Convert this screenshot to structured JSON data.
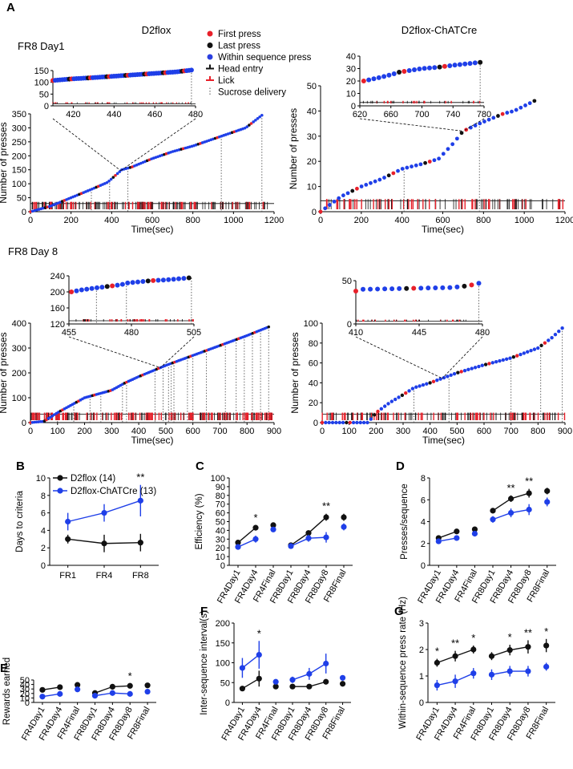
{
  "figure": {
    "panel_labels": [
      "A",
      "B",
      "C",
      "D",
      "E",
      "F",
      "G"
    ],
    "panel_a": {
      "group_left": "D2flox",
      "group_right": "D2flox-ChATCre",
      "session_day1": "FR8 Day1",
      "session_day8": "FR8 Day 8",
      "legend": [
        {
          "label": "First press",
          "color": "#e8202a",
          "symbol": "dot"
        },
        {
          "label": "Last press",
          "color": "#111111",
          "symbol": "dot"
        },
        {
          "label": "Within sequence press",
          "color": "#2a3fe0",
          "symbol": "dot"
        },
        {
          "label": "Head entry",
          "color": "#111111",
          "symbol": "tick"
        },
        {
          "label": "Lick",
          "color": "#e8202a",
          "symbol": "tick"
        },
        {
          "label": "Sucrose delivery",
          "color": "#555555",
          "symbol": "dots"
        }
      ]
    },
    "colors": {
      "d2flox": "#111111",
      "chatcre": "#1f3fe8",
      "first_press": "#e8202a",
      "grid": "#555555"
    }
  },
  "chart_data": [
    {
      "id": "A1",
      "type": "scatter",
      "title": "FR8 Day1 D2flox",
      "xlabel": "Time(sec)",
      "ylabel": "Number of presses",
      "xlim": [
        0,
        1200
      ],
      "ylim": [
        0,
        350
      ],
      "xticks": [
        0,
        200,
        400,
        600,
        800,
        1000,
        1200
      ],
      "yticks": [
        0,
        50,
        100,
        150,
        200,
        250,
        300,
        350
      ],
      "press_curve": [
        [
          0,
          0
        ],
        [
          100,
          20
        ],
        [
          200,
          50
        ],
        [
          300,
          80
        ],
        [
          380,
          105
        ],
        [
          450,
          150
        ],
        [
          500,
          160
        ],
        [
          600,
          190
        ],
        [
          700,
          215
        ],
        [
          800,
          235
        ],
        [
          900,
          260
        ],
        [
          1000,
          285
        ],
        [
          1060,
          300
        ],
        [
          1140,
          345
        ]
      ],
      "sucrose_deliveries": [
        300,
        390,
        480,
        940,
        1140
      ],
      "inset": {
        "xlim": [
          410,
          480
        ],
        "ylim": [
          0,
          150
        ],
        "xticks": [
          420,
          440,
          460,
          480
        ],
        "yticks": [
          0,
          50,
          100,
          150
        ],
        "press_curve": [
          [
            410,
            108
          ],
          [
            420,
            115
          ],
          [
            430,
            120
          ],
          [
            440,
            126
          ],
          [
            450,
            132
          ],
          [
            460,
            138
          ],
          [
            470,
            144
          ],
          [
            478,
            152
          ]
        ],
        "sucrose_deliveries": [
          478
        ]
      }
    },
    {
      "id": "A2",
      "type": "scatter",
      "title": "FR8 Day1 D2flox-ChATCre",
      "xlabel": "Time(sec)",
      "ylabel": "Number of presses",
      "xlim": [
        0,
        1200
      ],
      "ylim": [
        0,
        50
      ],
      "xticks": [
        0,
        200,
        400,
        600,
        800,
        1000,
        1200
      ],
      "yticks": [
        0,
        10,
        20,
        30,
        40,
        50
      ],
      "press_curve": [
        [
          0,
          0
        ],
        [
          100,
          6
        ],
        [
          200,
          10
        ],
        [
          300,
          13
        ],
        [
          400,
          17
        ],
        [
          500,
          19
        ],
        [
          580,
          21
        ],
        [
          650,
          27
        ],
        [
          700,
          32
        ],
        [
          780,
          35
        ],
        [
          900,
          39
        ],
        [
          950,
          40
        ],
        [
          1050,
          44
        ]
      ],
      "sucrose_deliveries": [
        410,
        780
      ],
      "inset": {
        "xlim": [
          620,
          780
        ],
        "ylim": [
          0,
          40
        ],
        "xticks": [
          620,
          660,
          700,
          740,
          780
        ],
        "yticks": [
          0,
          10,
          20,
          30,
          40
        ],
        "press_curve": [
          [
            625,
            20
          ],
          [
            640,
            22
          ],
          [
            660,
            25
          ],
          [
            670,
            27
          ],
          [
            700,
            30
          ],
          [
            720,
            31
          ],
          [
            745,
            33
          ],
          [
            775,
            35
          ]
        ],
        "sucrose_deliveries": [
          775
        ]
      }
    },
    {
      "id": "A3",
      "type": "scatter",
      "title": "FR8 Day 8 D2flox",
      "xlabel": "Time(sec)",
      "ylabel": "Number of presses",
      "xlim": [
        0,
        900
      ],
      "ylim": [
        0,
        400
      ],
      "xticks": [
        0,
        100,
        200,
        300,
        400,
        500,
        600,
        700,
        800,
        900
      ],
      "yticks": [
        0,
        100,
        200,
        300,
        400
      ],
      "press_curve": [
        [
          0,
          0
        ],
        [
          50,
          5
        ],
        [
          100,
          40
        ],
        [
          150,
          70
        ],
        [
          200,
          100
        ],
        [
          300,
          130
        ],
        [
          350,
          160
        ],
        [
          400,
          185
        ],
        [
          500,
          230
        ],
        [
          600,
          270
        ],
        [
          700,
          310
        ],
        [
          800,
          350
        ],
        [
          880,
          385
        ]
      ],
      "sucrose_deliveries": [
        100,
        160,
        220,
        260,
        340,
        355,
        460,
        490,
        510,
        520,
        530,
        580,
        600,
        650,
        720,
        760,
        790,
        820,
        850,
        880
      ],
      "inset": {
        "xlim": [
          455,
          505
        ],
        "ylim": [
          120,
          240
        ],
        "xticks": [
          455,
          480,
          505
        ],
        "yticks": [
          120,
          160,
          200,
          240
        ],
        "press_curve": [
          [
            456,
            200
          ],
          [
            460,
            205
          ],
          [
            466,
            210
          ],
          [
            476,
            218
          ],
          [
            478,
            222
          ],
          [
            488,
            228
          ],
          [
            494,
            230
          ],
          [
            503,
            235
          ]
        ],
        "sucrose_deliveries": [
          466,
          478,
          504
        ]
      }
    },
    {
      "id": "A4",
      "type": "scatter",
      "title": "FR8 Day 8 D2flox-ChATCre",
      "xlabel": "Time(sec)",
      "ylabel": "Number of presses",
      "xlim": [
        0,
        900
      ],
      "ylim": [
        0,
        100
      ],
      "xticks": [
        0,
        100,
        200,
        300,
        400,
        500,
        600,
        700,
        800,
        900
      ],
      "yticks": [
        0,
        20,
        40,
        60,
        80,
        100
      ],
      "press_curve": [
        [
          0,
          0
        ],
        [
          170,
          0
        ],
        [
          200,
          10
        ],
        [
          250,
          20
        ],
        [
          300,
          28
        ],
        [
          340,
          35
        ],
        [
          400,
          40
        ],
        [
          470,
          47
        ],
        [
          500,
          50
        ],
        [
          600,
          58
        ],
        [
          700,
          65
        ],
        [
          800,
          75
        ],
        [
          850,
          85
        ],
        [
          890,
          95
        ]
      ],
      "sucrose_deliveries": [
        340,
        470,
        700,
        810,
        890
      ],
      "inset": {
        "xlim": [
          410,
          480
        ],
        "ylim": [
          0,
          50
        ],
        "xticks": [
          410,
          445,
          480
        ],
        "yticks": [
          0,
          50
        ],
        "press_curve": [
          [
            410,
            38
          ],
          [
            414,
            40
          ],
          [
            462,
            42
          ],
          [
            468,
            43
          ],
          [
            474,
            45
          ],
          [
            478,
            47
          ]
        ],
        "sucrose_deliveries": [
          478
        ]
      }
    },
    {
      "id": "B",
      "type": "line",
      "ylabel": "Days to criteria",
      "categories": [
        "FR1",
        "FR4",
        "FR8"
      ],
      "ylim": [
        0,
        10
      ],
      "yticks": [
        0,
        2,
        4,
        6,
        8,
        10
      ],
      "series": [
        {
          "name": "D2flox (14)",
          "values": [
            3.0,
            2.5,
            2.6
          ],
          "err": [
            0.5,
            1.0,
            1.0
          ]
        },
        {
          "name": "D2flox-ChATCre (13)",
          "values": [
            5.0,
            6.0,
            7.4
          ],
          "err": [
            1.0,
            1.0,
            1.8
          ]
        }
      ],
      "significance": [
        {
          "category": "FR8",
          "label": "**"
        }
      ]
    },
    {
      "id": "C",
      "type": "line",
      "ylabel": "Efficiency (%)",
      "categories": [
        "FR4Day1",
        "FR4Day4",
        "FR4Final",
        "FR8Day1",
        "FR8Day4",
        "FR8Day8",
        "FR8Final"
      ],
      "ylim": [
        0,
        100
      ],
      "yticks": [
        0,
        10,
        20,
        30,
        40,
        50,
        60,
        70,
        80,
        90,
        100
      ],
      "segments": [
        [
          0,
          1
        ],
        [
          3,
          4,
          5
        ]
      ],
      "series": [
        {
          "name": "D2flox",
          "values": [
            26,
            43,
            46,
            23,
            37,
            55,
            55
          ],
          "err": [
            2,
            3,
            3,
            2,
            3,
            4,
            4
          ]
        },
        {
          "name": "D2flox-ChATCre",
          "values": [
            21,
            30,
            41,
            22,
            31,
            32,
            44
          ],
          "err": [
            2,
            4,
            3,
            2,
            4,
            6,
            4
          ]
        }
      ],
      "significance": [
        {
          "index": 1,
          "label": "*"
        },
        {
          "index": 5,
          "label": "**"
        }
      ]
    },
    {
      "id": "D",
      "type": "line",
      "ylabel": "Presses/sequence",
      "categories": [
        "FR4Day1",
        "FR4Day4",
        "FR4Final",
        "FR8Day1",
        "FR8Day4",
        "FR8Day8",
        "FR8Final"
      ],
      "ylim": [
        0,
        8
      ],
      "yticks": [
        0,
        2,
        4,
        6,
        8
      ],
      "segments": [
        [
          0,
          1
        ],
        [
          3,
          4,
          5
        ]
      ],
      "series": [
        {
          "name": "D2flox",
          "values": [
            2.5,
            3.1,
            3.3,
            5.0,
            6.1,
            6.6,
            6.8
          ],
          "err": [
            0.15,
            0.15,
            0.2,
            0.2,
            0.3,
            0.4,
            0.3
          ]
        },
        {
          "name": "D2flox-ChATCre",
          "values": [
            2.2,
            2.5,
            2.9,
            4.2,
            4.8,
            5.1,
            5.8
          ],
          "err": [
            0.15,
            0.15,
            0.2,
            0.3,
            0.4,
            0.5,
            0.4
          ]
        }
      ],
      "significance": [
        {
          "index": 4,
          "label": "**"
        },
        {
          "index": 5,
          "label": "**"
        }
      ]
    },
    {
      "id": "E",
      "type": "line",
      "ylabel": "Rewards earned",
      "categories": [
        "FR4Day1",
        "FR4Day4",
        "FR4Final",
        "FR8Day1",
        "FR8Day4",
        "FR8Day8",
        "FR8Final"
      ],
      "ylim": [
        0,
        50
      ],
      "yticks": [
        0,
        10,
        20,
        30,
        40,
        50
      ],
      "segments": [
        [
          0,
          1
        ],
        [
          3,
          4,
          5
        ]
      ],
      "series": [
        {
          "name": "D2flox",
          "values": [
            28,
            34,
            39,
            21,
            35,
            37,
            38
          ],
          "err": [
            4,
            6,
            5,
            4,
            5,
            5,
            4
          ]
        },
        {
          "name": "D2flox-ChATCre",
          "values": [
            13,
            19,
            29,
            15,
            21,
            19,
            24
          ],
          "err": [
            3,
            6,
            4,
            3,
            4,
            4,
            2
          ]
        }
      ],
      "significance": [
        {
          "index": 5,
          "label": "*"
        }
      ]
    },
    {
      "id": "F",
      "type": "line",
      "ylabel": "Inter-sequence interval(s)",
      "categories": [
        "FR4Day1",
        "FR4Day4",
        "FR4Final",
        "FR8Day1",
        "FR8Day4",
        "FR8Day8",
        "FR8Final"
      ],
      "ylim": [
        0,
        200
      ],
      "yticks": [
        0,
        50,
        100,
        150,
        200
      ],
      "segments": [
        [
          0,
          1
        ],
        [
          3,
          4,
          5
        ]
      ],
      "series": [
        {
          "name": "D2flox",
          "values": [
            35,
            60,
            40,
            40,
            40,
            52,
            47
          ],
          "err": [
            3,
            20,
            3,
            3,
            3,
            3,
            3
          ]
        },
        {
          "name": "D2flox-ChATCre",
          "values": [
            87,
            120,
            52,
            57,
            72,
            98,
            62
          ],
          "err": [
            25,
            35,
            6,
            8,
            15,
            25,
            5
          ]
        }
      ],
      "significance": [
        {
          "index": 1,
          "label": "*"
        }
      ]
    },
    {
      "id": "G",
      "type": "line",
      "ylabel": "Within-sequence press rate (Hz)",
      "categories": [
        "FR4Day1",
        "FR4Day4",
        "FR4Final",
        "FR8Day1",
        "FR8Day4",
        "FR8Day8",
        "FR8Final"
      ],
      "ylim": [
        0,
        3
      ],
      "yticks": [
        0,
        1,
        2,
        3
      ],
      "segments": [
        [
          0,
          1,
          2
        ],
        [
          3,
          4,
          5
        ]
      ],
      "series": [
        {
          "name": "D2flox",
          "values": [
            1.5,
            1.75,
            2.0,
            1.75,
            1.98,
            2.1,
            2.15
          ],
          "err": [
            0.15,
            0.2,
            0.15,
            0.15,
            0.2,
            0.25,
            0.25
          ]
        },
        {
          "name": "D2flox-ChATCre",
          "values": [
            0.65,
            0.8,
            1.1,
            1.05,
            1.18,
            1.18,
            1.35
          ],
          "err": [
            0.2,
            0.25,
            0.2,
            0.2,
            0.2,
            0.2,
            0.15
          ]
        }
      ],
      "significance": [
        {
          "index": 0,
          "label": "*"
        },
        {
          "index": 1,
          "label": "**"
        },
        {
          "index": 2,
          "label": "*"
        },
        {
          "index": 4,
          "label": "*"
        },
        {
          "index": 5,
          "label": "**"
        },
        {
          "index": 6,
          "label": "*"
        }
      ]
    }
  ]
}
